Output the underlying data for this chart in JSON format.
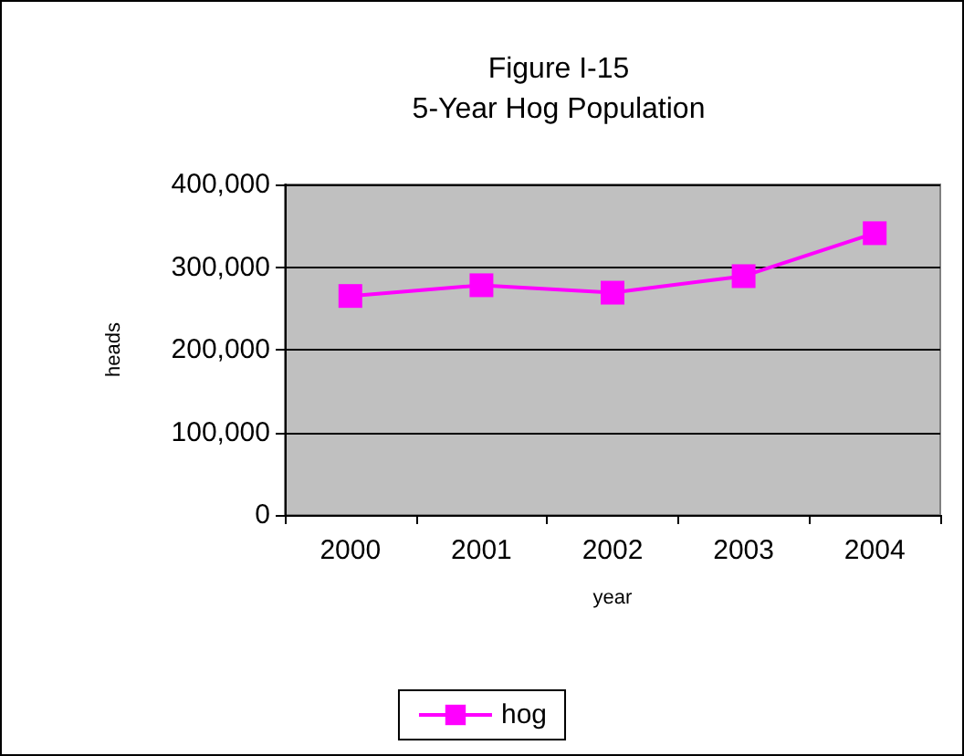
{
  "chart_data": {
    "type": "line",
    "title": "Figure I-15",
    "subtitle": "5-Year Hog Population",
    "xlabel": "year",
    "ylabel": "heads",
    "categories": [
      "2000",
      "2001",
      "2002",
      "2003",
      "2004"
    ],
    "series": [
      {
        "name": "hog",
        "color": "#ff00ff",
        "values": [
          265000,
          278000,
          269000,
          289000,
          341000
        ]
      }
    ],
    "ylim": [
      0,
      400000
    ],
    "yticks": [
      {
        "value": 0,
        "label": "0"
      },
      {
        "value": 100000,
        "label": "100,000"
      },
      {
        "value": 200000,
        "label": "200,000"
      },
      {
        "value": 300000,
        "label": "300,000"
      },
      {
        "value": 400000,
        "label": "400,000"
      }
    ],
    "grid": "y",
    "legend": "bottom",
    "marker": "square",
    "line_style": "solid"
  }
}
